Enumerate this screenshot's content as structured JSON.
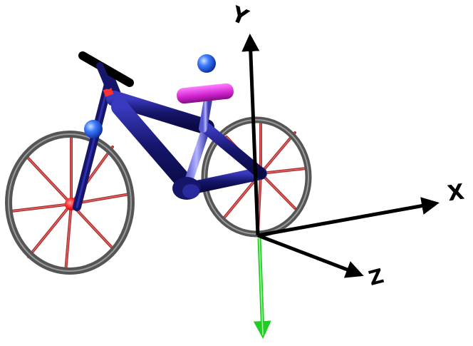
{
  "axes": {
    "y_label": "Y",
    "x_label": "X",
    "z_label": "Z"
  },
  "colors": {
    "frame": "#1a1a7a",
    "spoke": "#b03030",
    "tire": "#555555",
    "seat": "#d020d0",
    "seatpost": "#7f7fe0",
    "marker": "#2a6cf0",
    "hub": "#ff2020",
    "axis_main": "#000000",
    "axis_force": "#22cc22"
  },
  "scene": {
    "object": "bicycle-model",
    "markers": 2
  }
}
